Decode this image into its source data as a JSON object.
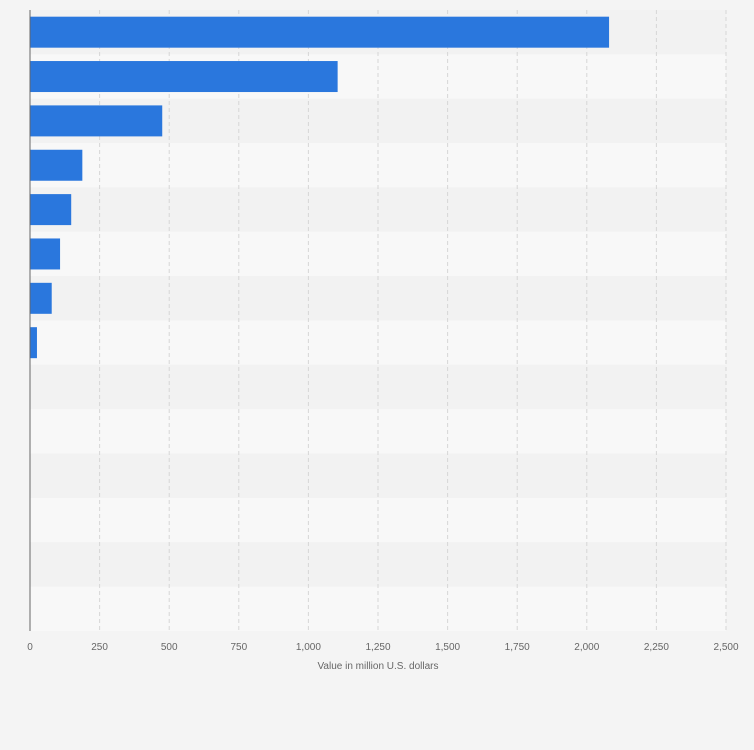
{
  "chart_data": {
    "type": "bar",
    "orientation": "horizontal",
    "categories": [
      "",
      "",
      "",
      "",
      "",
      "",
      "",
      "",
      "",
      "",
      "",
      "",
      "",
      ""
    ],
    "values": [
      2080,
      1105,
      475,
      188,
      148,
      108,
      78,
      25,
      0,
      0,
      0,
      0,
      0,
      0
    ],
    "title": "",
    "xlabel": "Value in million U.S. dollars",
    "ylabel": "",
    "xlim": [
      0,
      2500
    ],
    "xticks": [
      0,
      250,
      500,
      750,
      1000,
      1250,
      1500,
      1750,
      2000,
      2250,
      2500
    ],
    "xtick_labels": [
      "0",
      "250",
      "500",
      "750",
      "1,000",
      "1,250",
      "1,500",
      "1,750",
      "2,000",
      "2,250",
      "2,500"
    ],
    "grid": true,
    "legend": "none",
    "bar_color": "#2a77dd",
    "band_colors": [
      "#f2f2f2",
      "#f8f8f8"
    ],
    "grid_color": "#d6d6d6",
    "axis_color": "#666666"
  }
}
